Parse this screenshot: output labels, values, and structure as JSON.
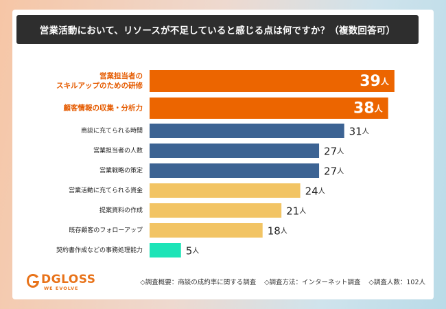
{
  "title": "営業活動において、リソースが不足していると感じる点は何ですか？（複数回答可）",
  "chart_data": {
    "type": "bar",
    "orientation": "horizontal",
    "unit": "人",
    "categories": [
      "営業担当者の\nスキルアップのための研修",
      "顧客情報の収集・分析力",
      "商談に充てられる時間",
      "営業担当者の人数",
      "営業戦略の策定",
      "営業活動に充てられる資金",
      "提案資料の作成",
      "既存顧客のフォローアップ",
      "契約書作成などの事務処理能力"
    ],
    "values": [
      39,
      38,
      31,
      27,
      27,
      24,
      21,
      18,
      5
    ],
    "colors": [
      "#ec6500",
      "#ec6500",
      "#3c6393",
      "#3c6393",
      "#3c6393",
      "#f2c464",
      "#f2c464",
      "#f2c464",
      "#1de4b7"
    ],
    "highlight_label_color": "#e55b00",
    "xlim": [
      0,
      40
    ]
  },
  "logo": {
    "name": "DGLOSS",
    "tagline": "WE EVOLVE"
  },
  "notes": [
    "◇調査概要：商談の成約率に関する調査",
    "◇調査方法：インターネット調査",
    "◇調査人数：102人"
  ]
}
